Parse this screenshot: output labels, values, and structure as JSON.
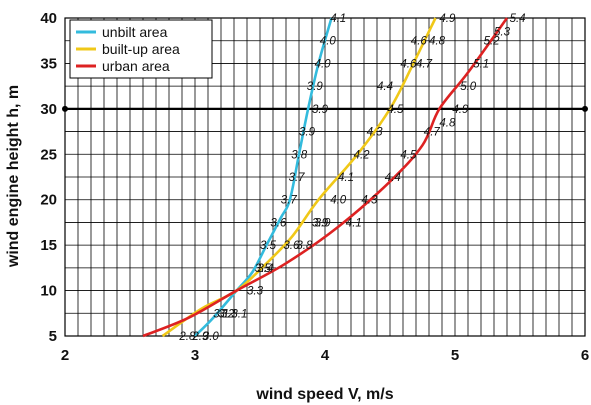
{
  "chart_data": {
    "type": "line",
    "title": "",
    "xlabel": "wind speed V, m/s",
    "ylabel": "wind engine height  h, m",
    "xlim": [
      2,
      6
    ],
    "ylim": [
      5,
      40
    ],
    "xticks": [
      "2",
      "3",
      "4",
      "5",
      "6"
    ],
    "yticks": [
      "5",
      "10",
      "15",
      "20",
      "25",
      "30",
      "35",
      "40"
    ],
    "grid": true,
    "legend_position": "top-left",
    "reference_line": {
      "y": 30
    },
    "series": [
      {
        "name": "unbilt area",
        "color": "#33bbdd",
        "points": [
          {
            "x": 3.0,
            "y": 5
          },
          {
            "x": 3.14,
            "y": 7
          },
          {
            "x": 3.32,
            "y": 10
          },
          {
            "x": 3.44,
            "y": 12
          },
          {
            "x": 3.55,
            "y": 15
          },
          {
            "x": 3.66,
            "y": 18
          },
          {
            "x": 3.73,
            "y": 20
          },
          {
            "x": 3.8,
            "y": 25
          },
          {
            "x": 3.87,
            "y": 30
          },
          {
            "x": 3.95,
            "y": 35
          },
          {
            "x": 4.05,
            "y": 40
          }
        ],
        "labels": [
          {
            "x": 3.06,
            "y": 5,
            "text": "3.0"
          },
          {
            "x": 3.18,
            "y": 7.5,
            "text": "3.2"
          },
          {
            "x": 3.4,
            "y": 10,
            "text": "3.3"
          },
          {
            "x": 3.48,
            "y": 12.5,
            "text": "3.4"
          },
          {
            "x": 3.5,
            "y": 15,
            "text": "3.5"
          },
          {
            "x": 3.58,
            "y": 17.5,
            "text": "3.6"
          },
          {
            "x": 3.66,
            "y": 20,
            "text": "3.7"
          },
          {
            "x": 3.72,
            "y": 22.5,
            "text": "3.7"
          },
          {
            "x": 3.74,
            "y": 25,
            "text": "3.8"
          },
          {
            "x": 3.8,
            "y": 27.5,
            "text": "3.9"
          },
          {
            "x": 3.9,
            "y": 30,
            "text": "3.9"
          },
          {
            "x": 3.86,
            "y": 32.5,
            "text": "3.9"
          },
          {
            "x": 3.92,
            "y": 35,
            "text": "4.0"
          },
          {
            "x": 3.96,
            "y": 37.5,
            "text": "4.0"
          },
          {
            "x": 4.04,
            "y": 40,
            "text": "4.1"
          }
        ]
      },
      {
        "name": "built-up area",
        "color": "#f0c818",
        "points": [
          {
            "x": 2.75,
            "y": 5
          },
          {
            "x": 3.05,
            "y": 8
          },
          {
            "x": 3.32,
            "y": 10
          },
          {
            "x": 3.55,
            "y": 13
          },
          {
            "x": 3.75,
            "y": 16
          },
          {
            "x": 3.95,
            "y": 20
          },
          {
            "x": 4.25,
            "y": 25
          },
          {
            "x": 4.5,
            "y": 30
          },
          {
            "x": 4.68,
            "y": 35
          },
          {
            "x": 4.85,
            "y": 40
          }
        ],
        "labels": [
          {
            "x": 2.88,
            "y": 5,
            "text": "2.8"
          },
          {
            "x": 3.14,
            "y": 7.5,
            "text": "3.1"
          },
          {
            "x": 3.46,
            "y": 12.5,
            "text": "3.5"
          },
          {
            "x": 3.68,
            "y": 15,
            "text": "3.6"
          },
          {
            "x": 3.92,
            "y": 17.5,
            "text": "3.9"
          },
          {
            "x": 4.04,
            "y": 20,
            "text": "4.0"
          },
          {
            "x": 4.1,
            "y": 22.5,
            "text": "4.1"
          },
          {
            "x": 4.22,
            "y": 25,
            "text": "4.2"
          },
          {
            "x": 4.32,
            "y": 27.5,
            "text": "4.3"
          },
          {
            "x": 4.48,
            "y": 30,
            "text": "4.5"
          },
          {
            "x": 4.4,
            "y": 32.5,
            "text": "4.4"
          },
          {
            "x": 4.58,
            "y": 35,
            "text": "4.6"
          },
          {
            "x": 4.66,
            "y": 37.5,
            "text": "4.6"
          },
          {
            "x": 4.7,
            "y": 35,
            "text": "4.7"
          },
          {
            "x": 4.8,
            "y": 37.5,
            "text": "4.8"
          },
          {
            "x": 4.88,
            "y": 40,
            "text": "4.9"
          }
        ]
      },
      {
        "name": "urban area",
        "color": "#dd2222",
        "points": [
          {
            "x": 2.6,
            "y": 5
          },
          {
            "x": 2.95,
            "y": 7
          },
          {
            "x": 3.32,
            "y": 10
          },
          {
            "x": 3.7,
            "y": 13
          },
          {
            "x": 4.1,
            "y": 17
          },
          {
            "x": 4.5,
            "y": 22
          },
          {
            "x": 4.75,
            "y": 26
          },
          {
            "x": 4.88,
            "y": 30
          },
          {
            "x": 5.1,
            "y": 34
          },
          {
            "x": 5.4,
            "y": 40
          }
        ],
        "labels": [
          {
            "x": 2.98,
            "y": 5,
            "text": "2.9"
          },
          {
            "x": 3.2,
            "y": 7.5,
            "text": "3.1"
          },
          {
            "x": 3.28,
            "y": 7.5,
            "text": "3.1"
          },
          {
            "x": 3.78,
            "y": 15,
            "text": "3.8"
          },
          {
            "x": 3.9,
            "y": 17.5,
            "text": "3.9"
          },
          {
            "x": 4.16,
            "y": 17.5,
            "text": "4.1"
          },
          {
            "x": 4.28,
            "y": 20,
            "text": "4.3"
          },
          {
            "x": 4.46,
            "y": 22.5,
            "text": "4.4"
          },
          {
            "x": 4.58,
            "y": 25,
            "text": "4.5"
          },
          {
            "x": 4.76,
            "y": 27.5,
            "text": "4.7"
          },
          {
            "x": 4.88,
            "y": 28.5,
            "text": "4.8"
          },
          {
            "x": 4.98,
            "y": 30,
            "text": "4.9"
          },
          {
            "x": 5.04,
            "y": 32.5,
            "text": "5.0"
          },
          {
            "x": 5.14,
            "y": 35,
            "text": "5.1"
          },
          {
            "x": 5.22,
            "y": 37.5,
            "text": "5.2"
          },
          {
            "x": 5.3,
            "y": 38.5,
            "text": "5.3"
          },
          {
            "x": 5.42,
            "y": 40,
            "text": "5.4"
          }
        ]
      }
    ]
  }
}
